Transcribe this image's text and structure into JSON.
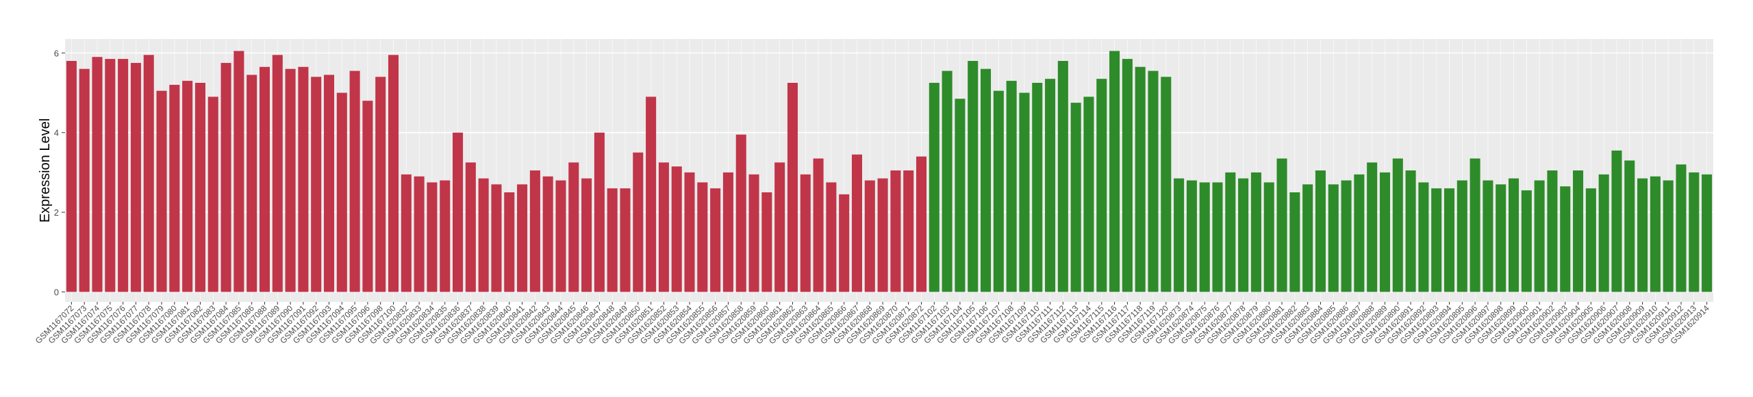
{
  "chart_data": {
    "type": "bar",
    "y_label": "Expression Level",
    "ylim": [
      -0.25,
      6.35
    ],
    "yticks": [
      0,
      2,
      4,
      6
    ],
    "grid": true,
    "series": [
      {
        "color": "#c13549",
        "categories": [
          "GSM1167072",
          "GSM1167073",
          "GSM1167074",
          "GSM1167075",
          "GSM1167076",
          "GSM1167077",
          "GSM1167078",
          "GSM1167079",
          "GSM1167080",
          "GSM1167081",
          "GSM1167082",
          "GSM1167083",
          "GSM1167084",
          "GSM1167085",
          "GSM1167086",
          "GSM1167088",
          "GSM1167089",
          "GSM1167090",
          "GSM1167091",
          "GSM1167092",
          "GSM1167093",
          "GSM1167094",
          "GSM1167095",
          "GSM1167096",
          "GSM1167098",
          "GSM1167100",
          "GSM1620832",
          "GSM1620833",
          "GSM1620834",
          "GSM1620835",
          "GSM1620836",
          "GSM1620837",
          "GSM1620838",
          "GSM1620839",
          "GSM1620840",
          "GSM1620841",
          "GSM1620842",
          "GSM1620843",
          "GSM1620844",
          "GSM1620845",
          "GSM1620846",
          "GSM1620847",
          "GSM1620848",
          "GSM1620849",
          "GSM1620850",
          "GSM1620851",
          "GSM1620852",
          "GSM1620853",
          "GSM1620854",
          "GSM1620855",
          "GSM1620856",
          "GSM1620857",
          "GSM1620858",
          "GSM1620859",
          "GSM1620860",
          "GSM1620861",
          "GSM1620862",
          "GSM1620863",
          "GSM1620864",
          "GSM1620865",
          "GSM1620866",
          "GSM1620867",
          "GSM1620868",
          "GSM1620869",
          "GSM1620870",
          "GSM1620871",
          "GSM1620872"
        ],
        "values": [
          5.8,
          5.6,
          5.9,
          5.85,
          5.85,
          5.75,
          5.95,
          5.05,
          5.2,
          5.3,
          5.25,
          4.9,
          5.75,
          6.05,
          5.45,
          5.65,
          5.95,
          5.6,
          5.65,
          5.4,
          5.45,
          5.0,
          5.55,
          4.8,
          5.4,
          5.95,
          2.95,
          2.9,
          2.75,
          2.8,
          4.0,
          3.25,
          2.85,
          2.7,
          2.5,
          2.7,
          3.05,
          2.9,
          2.8,
          3.25,
          2.85,
          4.0,
          2.6,
          2.6,
          3.5,
          4.9,
          3.25,
          3.15,
          3.0,
          2.75,
          2.6,
          3.0,
          3.95,
          2.95,
          2.5,
          3.25,
          5.25,
          2.95,
          3.35,
          2.75,
          2.45,
          3.45,
          2.8,
          2.85,
          3.05,
          3.05,
          3.4
        ]
      },
      {
        "color": "#2e8b2a",
        "categories": [
          "GSM1167102",
          "GSM1167103",
          "GSM1167104",
          "GSM1167105",
          "GSM1167106",
          "GSM1167107",
          "GSM1167108",
          "GSM1167109",
          "GSM1167110",
          "GSM1167111",
          "GSM1167112",
          "GSM1167113",
          "GSM1167114",
          "GSM1167115",
          "GSM1167116",
          "GSM1167117",
          "GSM1167118",
          "GSM1167119",
          "GSM1167120",
          "GSM1620873",
          "GSM1620874",
          "GSM1620875",
          "GSM1620876",
          "GSM1620877",
          "GSM1620878",
          "GSM1620879",
          "GSM1620880",
          "GSM1620881",
          "GSM1620882",
          "GSM1620883",
          "GSM1620884",
          "GSM1620885",
          "GSM1620886",
          "GSM1620887",
          "GSM1620888",
          "GSM1620889",
          "GSM1620890",
          "GSM1620891",
          "GSM1620892",
          "GSM1620893",
          "GSM1620894",
          "GSM1620895",
          "GSM1620896",
          "GSM1620897",
          "GSM1620898",
          "GSM1620899",
          "GSM1620900",
          "GSM1620901",
          "GSM1620902",
          "GSM1620903",
          "GSM1620904",
          "GSM1620905",
          "GSM1620906",
          "GSM1620907",
          "GSM1620908",
          "GSM1620909",
          "GSM1620910",
          "GSM1620911",
          "GSM1620912",
          "GSM1620913",
          "GSM1620914"
        ],
        "values": [
          5.25,
          5.55,
          4.85,
          5.8,
          5.6,
          5.05,
          5.3,
          5.0,
          5.25,
          5.35,
          5.8,
          4.75,
          4.9,
          5.35,
          6.05,
          5.85,
          5.65,
          5.55,
          5.4,
          2.85,
          2.8,
          2.75,
          2.75,
          3.0,
          2.85,
          3.0,
          2.75,
          3.35,
          2.5,
          2.7,
          3.05,
          2.7,
          2.8,
          2.95,
          3.25,
          3.0,
          3.35,
          3.05,
          2.75,
          2.6,
          2.6,
          2.8,
          3.35,
          2.8,
          2.7,
          2.85,
          2.55,
          2.8,
          3.05,
          2.65,
          3.05,
          2.6,
          2.95,
          3.55,
          3.3,
          2.85,
          2.9,
          2.8,
          3.2,
          3.0,
          2.95
        ]
      }
    ]
  }
}
